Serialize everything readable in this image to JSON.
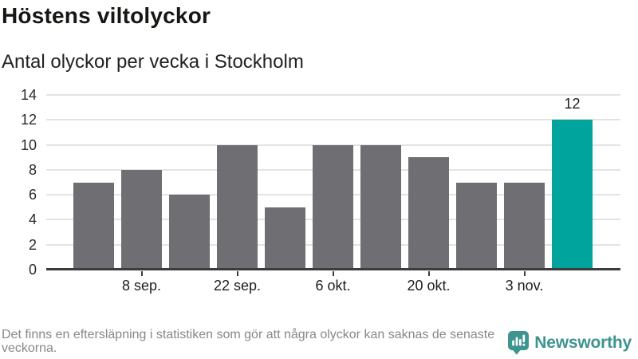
{
  "chart_data": {
    "type": "bar",
    "title": "Höstens viltolyckor",
    "subtitle": "Antal olyckor per vecka i Stockholm",
    "values": [
      7,
      8,
      6,
      10,
      5,
      10,
      10,
      9,
      7,
      7,
      12
    ],
    "highlight_index": 10,
    "data_labels": [
      {
        "index": 10,
        "text": "12"
      }
    ],
    "x_tick_labels": [
      {
        "index": 1,
        "label": "8 sep."
      },
      {
        "index": 3,
        "label": "22 sep."
      },
      {
        "index": 5,
        "label": "6 okt."
      },
      {
        "index": 7,
        "label": "20 okt."
      },
      {
        "index": 9,
        "label": "3 nov."
      }
    ],
    "y_ticks": [
      0,
      2,
      4,
      6,
      8,
      10,
      12,
      14
    ],
    "ylim": [
      0,
      14
    ],
    "grid": true,
    "legend": "none",
    "colors": {
      "bar": "#6E6E73",
      "highlight": "#00A49D",
      "gridline": "#E3E3E3",
      "axis": "#3C3C3C"
    }
  },
  "footer": {
    "note": "Det finns en eftersläpning i statistiken som gör att några olyckor kan saknas de senaste veckorna.",
    "brand": {
      "name": "Newsworthy",
      "color": "#3E948E"
    }
  }
}
